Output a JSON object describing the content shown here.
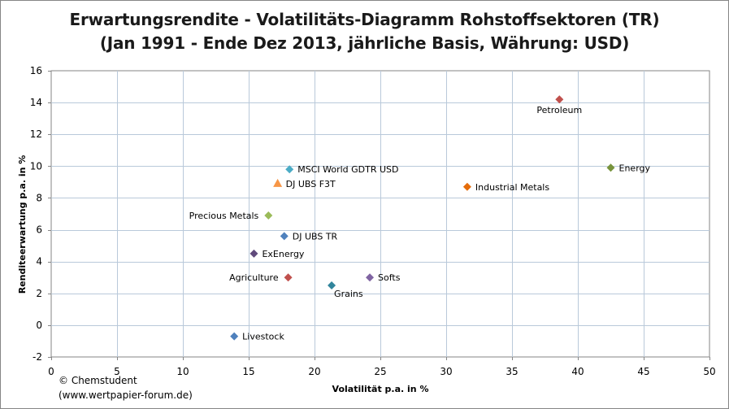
{
  "title_line1": "Erwartungsrendite - Volatilitäts-Diagramm Rohstoffsektoren (TR)",
  "title_line2": "(Jan 1991 - Ende Dez 2013, jährliche Basis,  Währung: USD)",
  "credit_line1": "© Chemstudent",
  "credit_line2": "(www.wertpapier-forum.de)",
  "chart_data": {
    "type": "scatter",
    "title": "Erwartungsrendite - Volatilitäts-Diagramm Rohstoffsektoren (TR) (Jan 1991 - Ende Dez 2013, jährliche Basis,  Währung: USD)",
    "xlabel": "Volatilität p.a. in %",
    "ylabel": "Renditeerwartung p.a. in %",
    "xlim": [
      0,
      50
    ],
    "ylim": [
      -2,
      16
    ],
    "xticks": [
      0,
      5,
      10,
      15,
      20,
      25,
      30,
      35,
      40,
      45,
      50
    ],
    "yticks": [
      -2,
      0,
      2,
      4,
      6,
      8,
      10,
      12,
      14,
      16
    ],
    "grid": true,
    "points": [
      {
        "name": "Petroleum",
        "x": 38.6,
        "y": 14.2,
        "color": "#C0504D",
        "marker": "diamond",
        "label_pos": "below"
      },
      {
        "name": "Energy",
        "x": 42.5,
        "y": 9.9,
        "color": "#77933C",
        "marker": "diamond",
        "label_pos": "right"
      },
      {
        "name": "MSCI World GDTR USD",
        "x": 18.1,
        "y": 9.8,
        "color": "#4BACC6",
        "marker": "diamond",
        "label_pos": "right"
      },
      {
        "name": "DJ UBS F3T",
        "x": 17.2,
        "y": 8.9,
        "color": "#F79646",
        "marker": "triangle",
        "label_pos": "right"
      },
      {
        "name": "Industrial Metals",
        "x": 31.6,
        "y": 8.7,
        "color": "#E46C0A",
        "marker": "diamond",
        "label_pos": "right"
      },
      {
        "name": "Precious Metals",
        "x": 16.5,
        "y": 6.9,
        "color": "#9BBB59",
        "marker": "diamond",
        "label_pos": "left"
      },
      {
        "name": "DJ UBS TR",
        "x": 17.7,
        "y": 5.6,
        "color": "#4F81BD",
        "marker": "diamond",
        "label_pos": "right"
      },
      {
        "name": "ExEnergy",
        "x": 15.4,
        "y": 4.5,
        "color": "#604A7B",
        "marker": "diamond",
        "label_pos": "right"
      },
      {
        "name": "Agriculture",
        "x": 18.0,
        "y": 3.0,
        "color": "#C0504D",
        "marker": "diamond",
        "label_pos": "left"
      },
      {
        "name": "Softs",
        "x": 24.2,
        "y": 3.0,
        "color": "#8064A2",
        "marker": "diamond",
        "label_pos": "right"
      },
      {
        "name": "Grains",
        "x": 21.3,
        "y": 2.5,
        "color": "#31859C",
        "marker": "diamond",
        "label_pos": "below-right"
      },
      {
        "name": "Livestock",
        "x": 13.9,
        "y": -0.7,
        "color": "#4F81BD",
        "marker": "diamond",
        "label_pos": "right"
      }
    ]
  }
}
